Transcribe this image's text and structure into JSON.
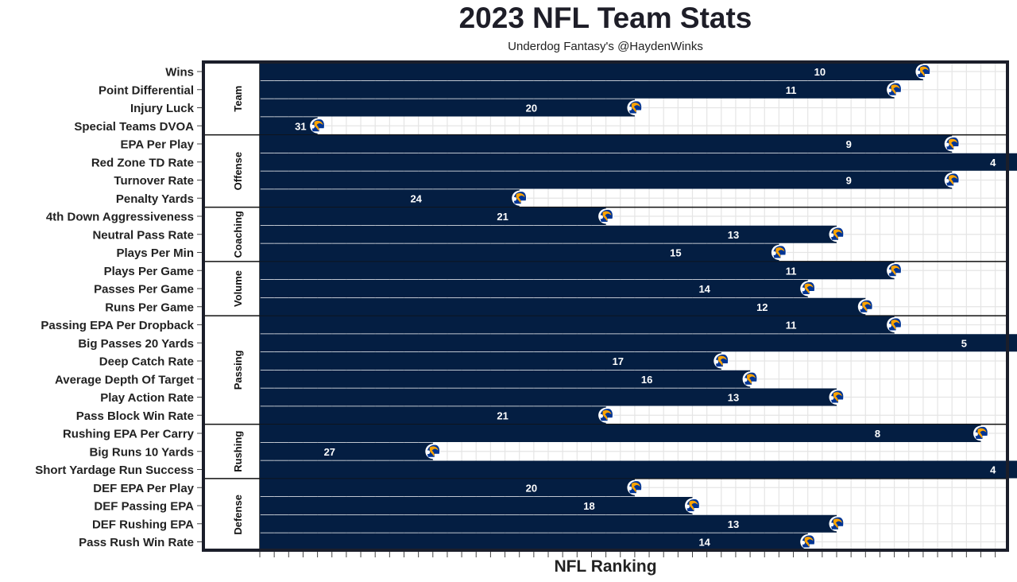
{
  "chart_data": {
    "type": "bar",
    "orientation": "horizontal",
    "title": "2023 NFL Team Stats",
    "subtitle": "Underdog Fantasy's @HaydenWinks",
    "xlabel": "NFL Ranking",
    "ylabel": "",
    "team_icon": "rams-helmet-icon",
    "colors": {
      "bar": "#041e42",
      "grid": "#e5e5e5",
      "frame": "#1b1e2a",
      "logo_blue": "#003594",
      "logo_gold": "#ffa300"
    },
    "rank_scale": {
      "best": 1,
      "worst": 32
    },
    "groups": [
      {
        "name": "Team",
        "items": [
          {
            "label": "Wins",
            "rank": 10
          },
          {
            "label": "Point Differential",
            "rank": 11
          },
          {
            "label": "Injury Luck",
            "rank": 20
          },
          {
            "label": "Special Teams DVOA",
            "rank": 31
          }
        ]
      },
      {
        "name": "Offense",
        "items": [
          {
            "label": "EPA Per Play",
            "rank": 9
          },
          {
            "label": "Red Zone TD Rate",
            "rank": 4
          },
          {
            "label": "Turnover Rate",
            "rank": 9
          },
          {
            "label": "Penalty Yards",
            "rank": 24
          }
        ]
      },
      {
        "name": "Coaching",
        "items": [
          {
            "label": "4th Down Aggressiveness",
            "rank": 21
          },
          {
            "label": "Neutral Pass Rate",
            "rank": 13
          },
          {
            "label": "Plays Per Min",
            "rank": 15
          }
        ]
      },
      {
        "name": "Volume",
        "items": [
          {
            "label": "Plays Per Game",
            "rank": 11
          },
          {
            "label": "Passes Per Game",
            "rank": 14
          },
          {
            "label": "Runs Per Game",
            "rank": 12
          }
        ]
      },
      {
        "name": "Passing",
        "items": [
          {
            "label": "Passing EPA Per Dropback",
            "rank": 11
          },
          {
            "label": "Big Passes 20 Yards",
            "rank": 5
          },
          {
            "label": "Deep Catch Rate",
            "rank": 17
          },
          {
            "label": "Average Depth Of Target",
            "rank": 16
          },
          {
            "label": "Play Action Rate",
            "rank": 13
          },
          {
            "label": "Pass Block Win Rate",
            "rank": 21
          }
        ]
      },
      {
        "name": "Rushing",
        "items": [
          {
            "label": "Rushing EPA Per Carry",
            "rank": 8
          },
          {
            "label": "Big Runs 10 Yards",
            "rank": 27
          },
          {
            "label": "Short Yardage Run Success",
            "rank": 4
          }
        ]
      },
      {
        "name": "Defense",
        "items": [
          {
            "label": "DEF EPA Per Play",
            "rank": 20
          },
          {
            "label": "DEF Passing EPA",
            "rank": 18
          },
          {
            "label": "DEF Rushing EPA",
            "rank": 13
          },
          {
            "label": "Pass Rush Win Rate",
            "rank": 14
          }
        ]
      }
    ]
  }
}
